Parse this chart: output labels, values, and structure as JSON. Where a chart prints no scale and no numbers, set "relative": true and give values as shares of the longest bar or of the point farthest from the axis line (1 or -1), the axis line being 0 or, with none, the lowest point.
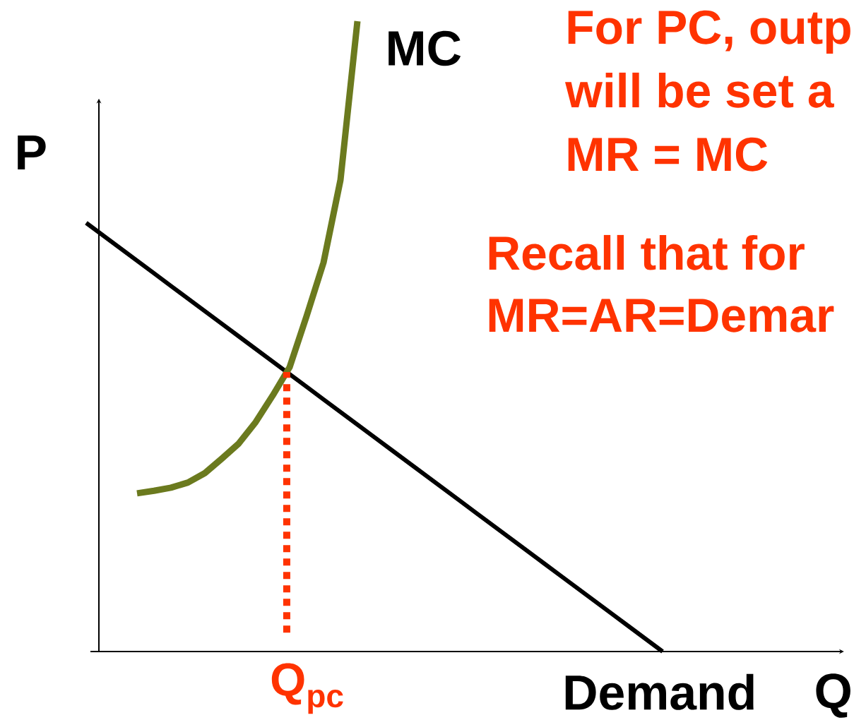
{
  "chart_data": {
    "type": "line",
    "relative": true,
    "xlabel": "Q",
    "ylabel": "P",
    "categories": [
      null,
      null,
      null,
      null,
      null,
      null,
      null,
      null,
      null,
      null,
      null,
      null,
      null,
      null,
      null,
      null,
      null,
      null,
      null,
      null,
      null,
      null,
      null,
      null,
      null,
      null,
      null,
      null,
      null,
      null,
      null,
      null,
      null,
      null,
      null
    ],
    "series": [
      {
        "name": "Demand",
        "color": "#000000",
        "values": [
          0.68,
          0.66,
          0.64,
          0.62,
          0.6,
          0.58,
          0.56,
          0.54,
          0.52,
          0.5,
          0.48,
          0.46,
          0.44,
          0.42,
          0.4,
          0.38,
          0.36,
          0.34,
          0.32,
          0.3,
          0.28,
          0.26,
          0.24,
          0.22,
          0.2,
          0.18,
          0.16,
          0.14,
          0.12,
          0.1,
          0.08,
          0.06,
          0.04,
          0.02,
          0
        ]
      },
      {
        "name": "MC",
        "color": "#6b7a1e",
        "values": [
          null,
          null,
          null,
          0.251,
          0.255,
          0.26,
          0.268,
          0.283,
          0.306,
          0.33,
          0.364,
          0.406,
          0.451,
          0.532,
          0.617,
          0.748,
          1.0,
          null,
          null,
          null,
          null,
          null,
          null,
          null,
          null,
          null,
          null,
          null,
          null,
          null,
          null,
          null,
          null,
          null,
          null
        ]
      }
    ],
    "annotations": [
      "Q$_{pc}$",
      "For PC, outp",
      "will be set a",
      "MR = MC",
      "Recall that for",
      "MR=AR=Demar"
    ]
  }
}
